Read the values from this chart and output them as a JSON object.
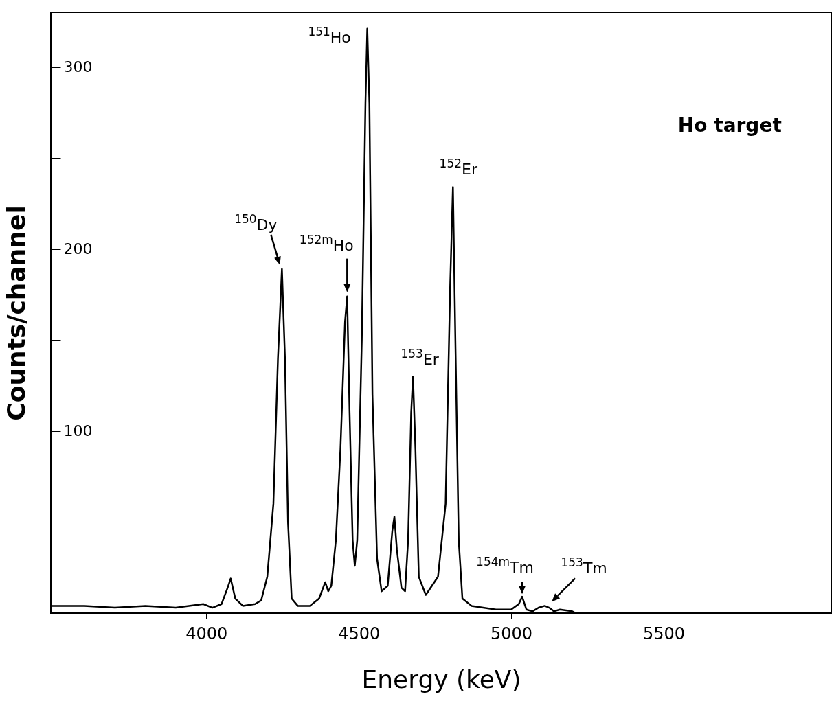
{
  "chart_data": {
    "type": "line",
    "xlabel": "Energy (keV)",
    "ylabel": "Counts/channel",
    "x": [
      3490,
      3600,
      3700,
      3800,
      3900,
      3990,
      4020,
      4050,
      4070,
      4080,
      4095,
      4120,
      4160,
      4180,
      4200,
      4220,
      4235,
      4248,
      4258,
      4268,
      4280,
      4300,
      4340,
      4370,
      4390,
      4400,
      4410,
      4425,
      4440,
      4455,
      4462,
      4470,
      4480,
      4487,
      4495,
      4510,
      4522,
      4528,
      4535,
      4545,
      4560,
      4575,
      4595,
      4610,
      4617,
      4625,
      4640,
      4652,
      4662,
      4672,
      4678,
      4686,
      4697,
      4720,
      4760,
      4785,
      4800,
      4809,
      4817,
      4828,
      4840,
      4870,
      4950,
      5000,
      5025,
      5036,
      5050,
      5070,
      5090,
      5110,
      5125,
      5140,
      5160,
      5200,
      5212
    ],
    "series": [
      {
        "color": "#000000",
        "values": [
          4,
          4,
          3,
          4,
          3,
          5,
          3,
          5,
          14,
          19,
          8,
          4,
          5,
          7,
          20,
          60,
          140,
          189,
          140,
          50,
          8,
          4,
          4,
          8,
          17,
          12,
          15,
          40,
          90,
          160,
          174,
          110,
          40,
          26,
          40,
          150,
          280,
          321,
          280,
          120,
          30,
          12,
          15,
          45,
          53,
          35,
          14,
          12,
          40,
          110,
          130,
          90,
          20,
          10,
          20,
          60,
          180,
          234,
          150,
          40,
          8,
          4,
          2,
          2,
          5,
          9,
          2,
          1,
          3,
          4,
          3,
          1,
          2,
          1,
          0
        ]
      }
    ],
    "xlim": [
      3490,
      6050
    ],
    "xticks": [
      4000,
      4500,
      5000,
      5500
    ],
    "ylim": [
      0,
      330
    ],
    "yticks": [
      {
        "value": 50,
        "label": null
      },
      100,
      {
        "value": 150,
        "label": null
      },
      200,
      {
        "value": 250,
        "label": null
      },
      300
    ],
    "annotations": [
      {
        "text": "$^{150}$Dy",
        "x": 4248,
        "y": 189
      },
      {
        "text": "$^{151}$Ho",
        "x": 4528,
        "y": 321
      },
      {
        "text": "$^{152m}$Ho",
        "x": 4462,
        "y": 174
      },
      {
        "text": "$^{153}$Er",
        "x": 4678,
        "y": 130
      },
      {
        "text": "$^{152}$Er",
        "x": 4809,
        "y": 234
      },
      {
        "text": "$^{154m}$Tm",
        "x": 5036,
        "y": 9
      },
      {
        "text": "$^{153}$Tm",
        "x": 5115,
        "y": 4
      },
      "Ho target"
    ]
  }
}
